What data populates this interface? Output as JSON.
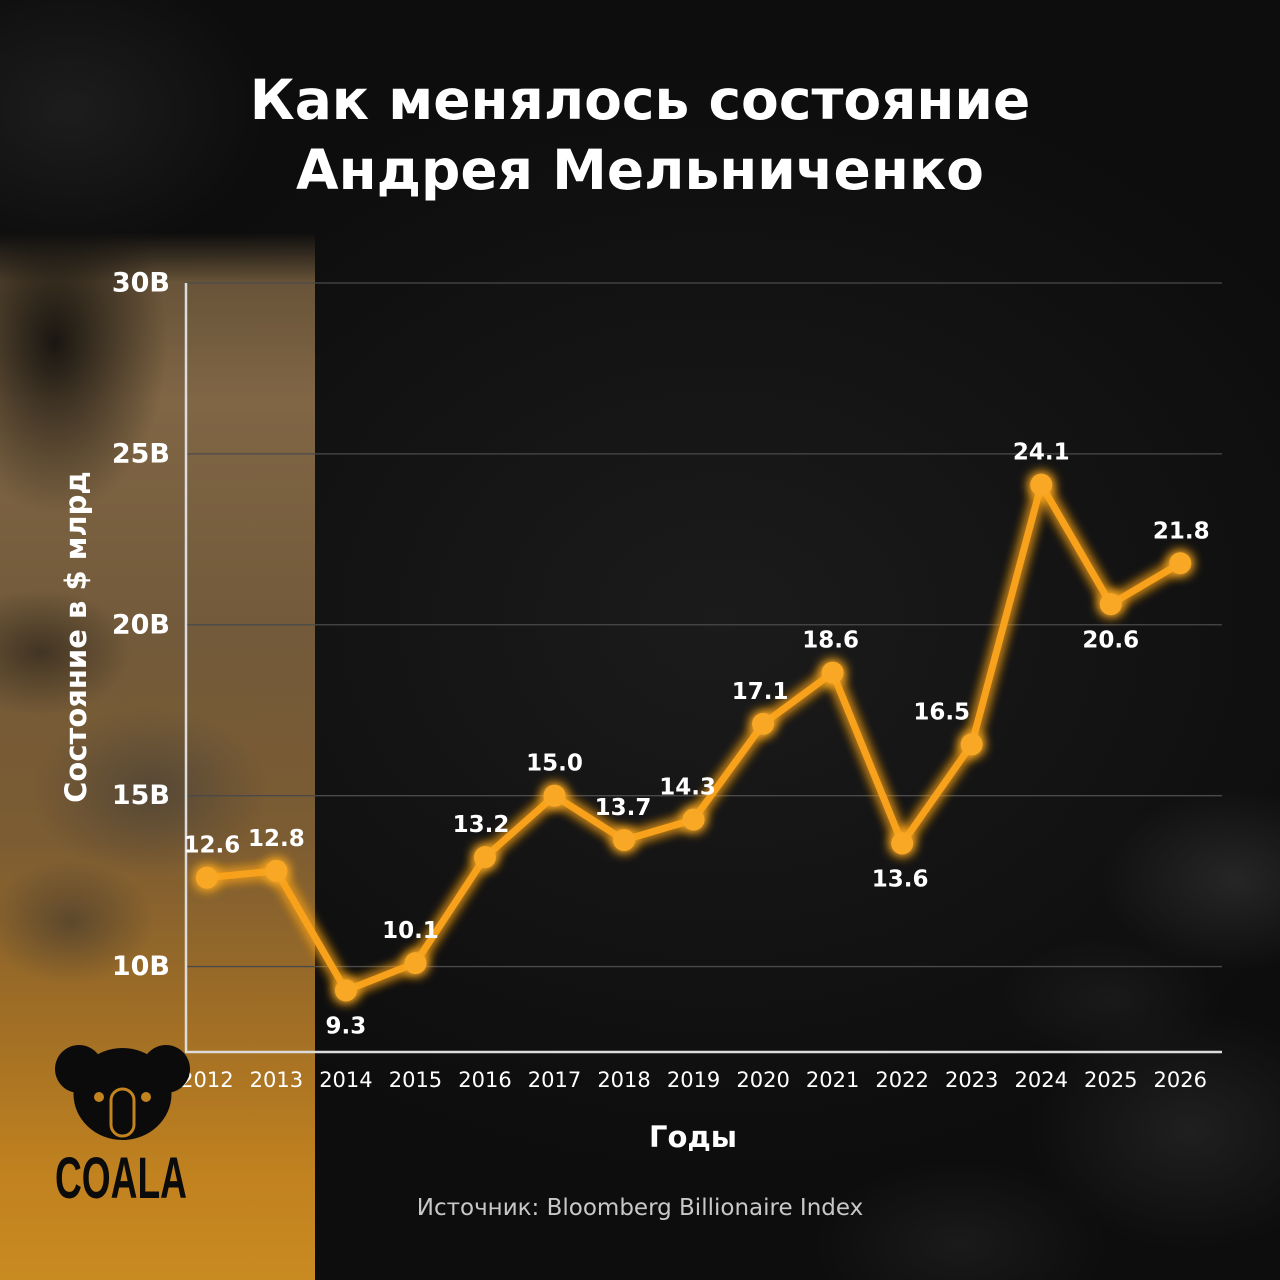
{
  "chart_data": {
    "type": "line",
    "title": [
      "Как менялось состояние",
      "Андрея Мельниченко"
    ],
    "xlabel": "Годы",
    "ylabel": "Состояние в $ млрд",
    "x": [
      2012,
      2013,
      2014,
      2015,
      2016,
      2017,
      2018,
      2019,
      2020,
      2021,
      2022,
      2023,
      2024,
      2025,
      2026
    ],
    "values": [
      12.6,
      12.8,
      9.3,
      10.1,
      13.2,
      15.0,
      13.7,
      14.3,
      17.1,
      18.6,
      13.6,
      16.5,
      24.1,
      20.6,
      21.8
    ],
    "yticks": [
      10,
      15,
      20,
      25,
      30
    ],
    "ytick_labels": [
      "10B",
      "15B",
      "20B",
      "25B",
      "30B"
    ],
    "xlim": [
      2011.7,
      2026.6
    ],
    "ylim": [
      7.5,
      30
    ],
    "grid": true,
    "legend": false,
    "show_values": true
  },
  "source": "Источник: Bloomberg Billionaire Index",
  "logo": {
    "text": "COALA",
    "icon": "koala-icon"
  },
  "colors": {
    "line": "#f8a11a",
    "point": "#f9a825",
    "text": "#ffffff",
    "grid": "#4a4a4a",
    "axis": "#dcdcdc",
    "source_text": "#c8c8c8",
    "accent": "#c3831e",
    "logo": "#0b0b0b"
  }
}
